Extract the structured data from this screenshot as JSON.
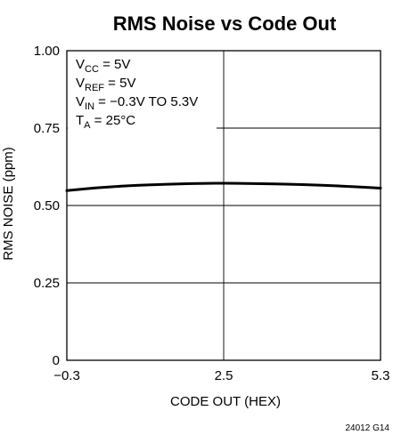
{
  "chart_data": {
    "type": "line",
    "title": "RMS Noise vs Code Out",
    "xlabel": "CODE OUT (HEX)",
    "ylabel": "RMS NOISE (ppm)",
    "xlim": [
      -0.3,
      5.3
    ],
    "ylim": [
      0,
      1.0
    ],
    "x_ticks": [
      -0.3,
      2.5,
      5.3
    ],
    "x_tick_labels": [
      "−0.3",
      "2.5",
      "5.3"
    ],
    "y_ticks": [
      0,
      0.25,
      0.5,
      0.75,
      1.0
    ],
    "y_tick_labels": [
      "0",
      "0.25",
      "0.50",
      "0.75",
      "1.00"
    ],
    "grid": true,
    "series": [
      {
        "x": [
          -0.3,
          0.2,
          0.8,
          1.5,
          2.2,
          2.5,
          3.0,
          3.6,
          4.2,
          4.8,
          5.3
        ],
        "y": [
          0.548,
          0.557,
          0.564,
          0.569,
          0.572,
          0.572,
          0.571,
          0.569,
          0.566,
          0.561,
          0.556
        ]
      }
    ],
    "annotations": [
      {
        "main": "V",
        "sub": "CC",
        "rest": " = 5V"
      },
      {
        "main": "V",
        "sub": "REF",
        "rest": " = 5V"
      },
      {
        "main": "V",
        "sub": "IN",
        "rest": " = −0.3V TO 5.3V"
      },
      {
        "main": "T",
        "sub": "A",
        "rest": " = 25°C"
      }
    ],
    "figure_id": "24012 G14"
  }
}
